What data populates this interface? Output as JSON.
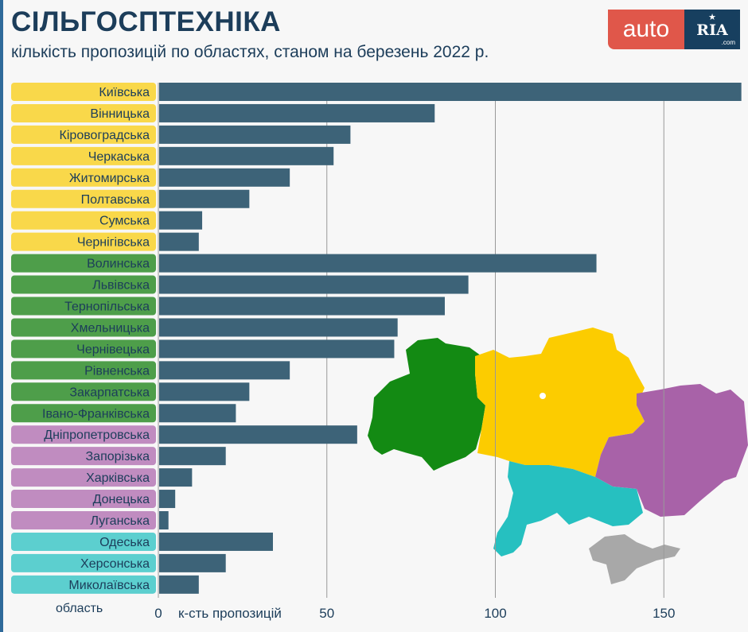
{
  "header": {
    "title": "СІЛЬГОСПТЕХНІКА",
    "subtitle": "кількість пропозицій по областях, станом на березень 2022 р.",
    "logo_left": "auto",
    "logo_right": "RIA",
    "logo_domain": ".com"
  },
  "colors": {
    "bar": "#3d6378",
    "yellow": "#f9d84a",
    "green": "#4e9e4a",
    "purple": "#c08cc0",
    "teal": "#5ccfcf",
    "title": "#1c3d5a"
  },
  "chart_data": {
    "type": "bar",
    "orientation": "horizontal",
    "title": "СІЛЬГОСПТЕХНІКА",
    "xlabel": "к-сть пропозицій",
    "ylabel": "область",
    "xlim": [
      0,
      173
    ],
    "xticks": [
      0,
      50,
      100,
      150
    ],
    "grid": true,
    "categories": [
      "Київська",
      "Вінницька",
      "Кіровоградська",
      "Черкаська",
      "Житомирська",
      "Полтавська",
      "Сумська",
      "Чернігівська",
      "Волинська",
      "Львівська",
      "Тернопільська",
      "Хмельницька",
      "Чернівецька",
      "Рівненська",
      "Закарпатська",
      "Івано-Франківська",
      "Дніпропетровська",
      "Запорізька",
      "Харківська",
      "Донецька",
      "Луганська",
      "Одеська",
      "Херсонська",
      "Миколаївська"
    ],
    "groups": [
      "yellow",
      "yellow",
      "yellow",
      "yellow",
      "yellow",
      "yellow",
      "yellow",
      "yellow",
      "green",
      "green",
      "green",
      "green",
      "green",
      "green",
      "green",
      "green",
      "purple",
      "purple",
      "purple",
      "purple",
      "purple",
      "teal",
      "teal",
      "teal"
    ],
    "values": [
      173,
      82,
      57,
      52,
      39,
      27,
      13,
      12,
      130,
      92,
      85,
      71,
      70,
      39,
      27,
      23,
      59,
      20,
      10,
      5,
      3,
      34,
      20,
      12
    ]
  }
}
